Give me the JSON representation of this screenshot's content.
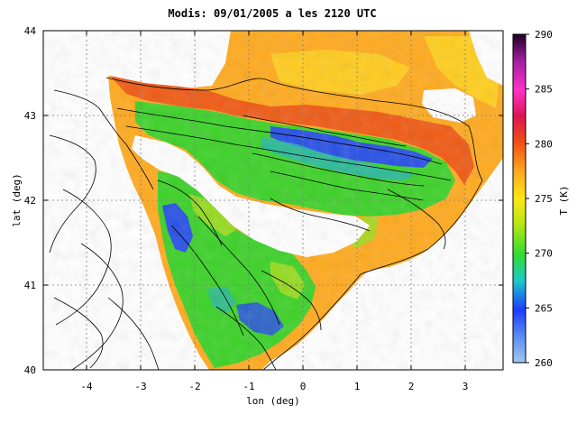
{
  "title": "Modis: 09/01/2005 a les 2120 UTC",
  "chart_data": {
    "type": "heatmap",
    "title": "Modis: 09/01/2005 a les 2120 UTC",
    "xlabel": "lon (deg)",
    "ylabel": "lat (deg)",
    "xlim": [
      -4.8,
      3.7
    ],
    "ylim": [
      40,
      44
    ],
    "x_ticks": [
      -4,
      -3,
      -2,
      -1,
      0,
      1,
      2,
      3
    ],
    "y_ticks": [
      40,
      41,
      42,
      43,
      44
    ],
    "x_tick_labels": [
      "-4",
      "-3",
      "-2",
      "-1",
      "0",
      "1",
      "2",
      "3"
    ],
    "y_tick_labels": [
      "40",
      "41",
      "42",
      "43",
      "44"
    ],
    "grid": true,
    "colorbar": {
      "label": "T (K)",
      "min": 260,
      "max": 290,
      "ticks": [
        260,
        265,
        270,
        275,
        280,
        285,
        290
      ],
      "tick_labels": [
        "260",
        "265",
        "270",
        "275",
        "280",
        "285",
        "290"
      ],
      "colors": [
        "#a0c8f0",
        "#1e3cff",
        "#1ec8c8",
        "#32dc32",
        "#b4e614",
        "#ffe614",
        "#ffaa1e",
        "#f05014",
        "#dc1450",
        "#ff32c8",
        "#a01ea0",
        "#200020"
      ]
    }
  },
  "colors": {
    "warm": "#ffaa1e",
    "orange_red": "#f05a14",
    "yellow": "#ffd21e",
    "green": "#3cd228",
    "lime": "#a0dc1e",
    "blue": "#2850e6",
    "teal": "#28b4b4"
  }
}
